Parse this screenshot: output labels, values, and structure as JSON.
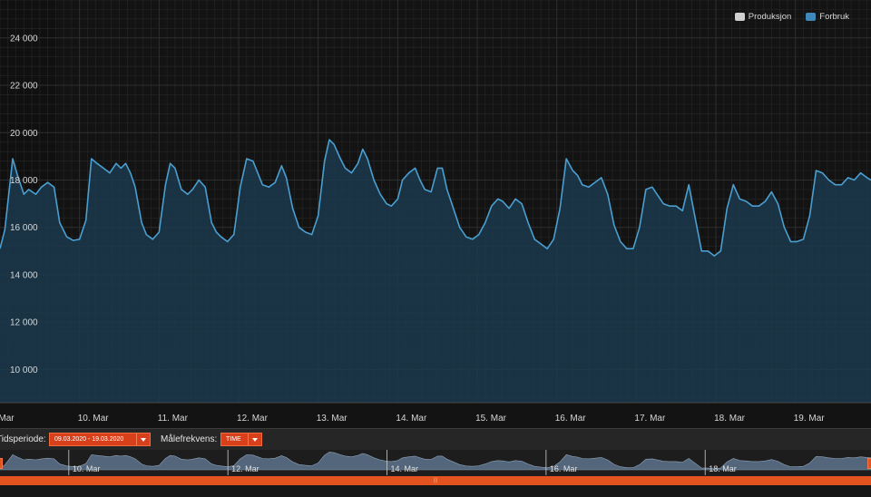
{
  "colors": {
    "production": "#d0d0d0",
    "consumption": "#3f88b9",
    "line": "#4a9fd0",
    "fill": "#1b3a4d",
    "accent": "#d8401c"
  },
  "legend": {
    "production_label": "Produksjon",
    "consumption_label": "Forbruk"
  },
  "controls": {
    "period_label": "Tidsperiode:",
    "period_value": "09.03.2020 - 19.03.2020",
    "frequency_label": "Målefrekvens:",
    "frequency_value": "TIME"
  },
  "navigator": {
    "labels": [
      "10. Mar",
      "12. Mar",
      "14. Mar",
      "16. Mar",
      "18. Mar"
    ],
    "scroll_grip": "|||"
  },
  "chart_data": {
    "type": "area",
    "title": "",
    "xlabel": "",
    "ylabel": "",
    "x_ticks": [
      "Mar",
      "10. Mar",
      "11. Mar",
      "12. Mar",
      "13. Mar",
      "14. Mar",
      "15. Mar",
      "16. Mar",
      "17. Mar",
      "18. Mar",
      "19. Mar"
    ],
    "y_ticks": [
      10000,
      12000,
      14000,
      16000,
      18000,
      20000,
      22000,
      24000
    ],
    "y_tick_labels": [
      "10 000",
      "12 000",
      "14 000",
      "16 000",
      "18 000",
      "20 000",
      "22 000",
      "24 000"
    ],
    "ylim": [
      8600,
      25600
    ],
    "xlim": [
      9.0,
      19.95
    ],
    "grid": true,
    "legend_position": "top-right",
    "series": [
      {
        "name": "Produksjon",
        "visible": false,
        "x": [],
        "y": []
      },
      {
        "name": "Forbruk",
        "x": [
          9.0,
          9.06,
          9.16,
          9.22,
          9.3,
          9.36,
          9.45,
          9.52,
          9.6,
          9.68,
          9.75,
          9.84,
          9.92,
          10.0,
          10.08,
          10.15,
          10.22,
          10.3,
          10.38,
          10.46,
          10.52,
          10.58,
          10.64,
          10.7,
          10.78,
          10.84,
          10.92,
          11.0,
          11.08,
          11.14,
          11.2,
          11.28,
          11.36,
          11.42,
          11.5,
          11.58,
          11.66,
          11.72,
          11.78,
          11.86,
          11.94,
          12.02,
          12.1,
          12.18,
          12.24,
          12.3,
          12.38,
          12.46,
          12.54,
          12.6,
          12.68,
          12.76,
          12.84,
          12.92,
          13.0,
          13.08,
          13.14,
          13.2,
          13.28,
          13.34,
          13.42,
          13.5,
          13.56,
          13.62,
          13.7,
          13.78,
          13.86,
          13.92,
          14.0,
          14.06,
          14.14,
          14.22,
          14.28,
          14.34,
          14.42,
          14.5,
          14.56,
          14.62,
          14.7,
          14.78,
          14.86,
          14.94,
          15.02,
          15.1,
          15.18,
          15.26,
          15.32,
          15.4,
          15.48,
          15.56,
          15.64,
          15.72,
          15.8,
          15.88,
          15.96,
          16.04,
          16.12,
          16.2,
          16.26,
          16.32,
          16.4,
          16.48,
          16.56,
          16.64,
          16.72,
          16.8,
          16.88,
          16.96,
          17.04,
          17.12,
          17.2,
          17.28,
          17.34,
          17.42,
          17.5,
          17.58,
          17.66,
          17.74,
          17.82,
          17.9,
          17.98,
          18.06,
          18.14,
          18.22,
          18.3,
          18.38,
          18.46,
          18.54,
          18.62,
          18.7,
          18.78,
          18.86,
          18.94,
          19.02,
          19.1,
          19.18,
          19.26,
          19.34,
          19.42,
          19.5,
          19.58,
          19.66,
          19.74,
          19.82,
          19.9,
          19.95
        ],
        "y": [
          15100,
          15900,
          18900,
          18200,
          17400,
          17600,
          17400,
          17700,
          17900,
          17700,
          16200,
          15600,
          15450,
          15500,
          16300,
          18900,
          18700,
          18500,
          18300,
          18700,
          18500,
          18700,
          18300,
          17700,
          16200,
          15700,
          15500,
          15800,
          17800,
          18700,
          18500,
          17600,
          17400,
          17600,
          18000,
          17700,
          16200,
          15800,
          15600,
          15400,
          15700,
          17700,
          18900,
          18800,
          18300,
          17800,
          17700,
          17900,
          18600,
          18100,
          16800,
          16000,
          15800,
          15700,
          16500,
          18800,
          19700,
          19500,
          18900,
          18500,
          18300,
          18700,
          19300,
          18900,
          18000,
          17400,
          17000,
          16900,
          17200,
          18000,
          18300,
          18500,
          18000,
          17600,
          17500,
          18500,
          18500,
          17600,
          16800,
          16000,
          15600,
          15500,
          15700,
          16200,
          16900,
          17200,
          17100,
          16800,
          17200,
          17000,
          16200,
          15500,
          15300,
          15100,
          15500,
          16800,
          18900,
          18400,
          18200,
          17800,
          17700,
          17900,
          18100,
          17400,
          16100,
          15400,
          15100,
          15100,
          16000,
          17600,
          17700,
          17300,
          17000,
          16900,
          16900,
          16700,
          17800,
          16400,
          15000,
          15000,
          14800,
          15000,
          16800,
          17800,
          17200,
          17100,
          16900,
          16900,
          17100,
          17500,
          17000,
          16000,
          15400,
          15400,
          15500,
          16500,
          18400,
          18300,
          18000,
          17800,
          17800,
          18100,
          18000,
          18300,
          18100,
          18000
        ]
      }
    ]
  }
}
